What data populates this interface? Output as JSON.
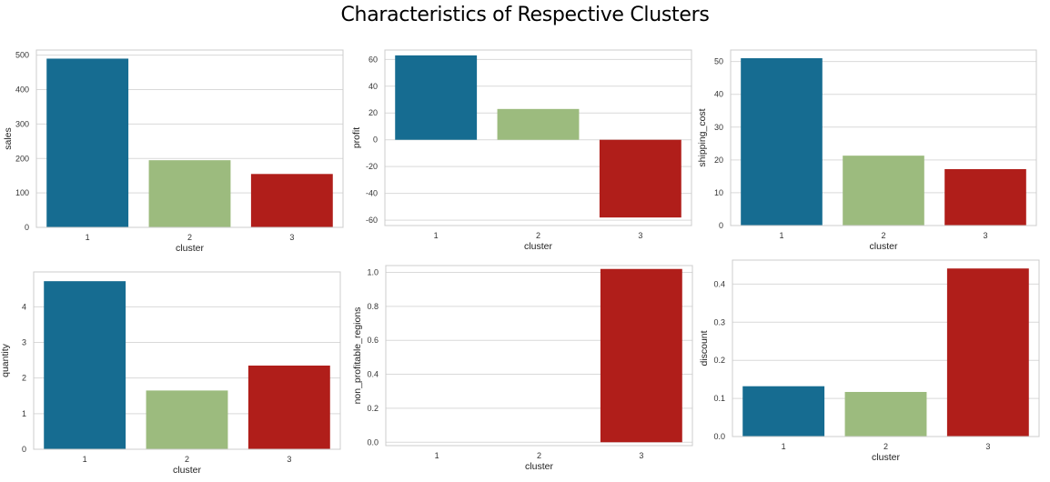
{
  "title": "Characteristics of Respective Clusters",
  "chart_data": [
    {
      "type": "bar",
      "categories": [
        "1",
        "2",
        "3"
      ],
      "values": [
        490,
        195,
        155
      ],
      "xlabel": "cluster",
      "ylabel": "sales",
      "ylim": [
        0,
        515
      ],
      "yticks": [
        0,
        100,
        200,
        300,
        400,
        500
      ],
      "colors": [
        "#166c91",
        "#9cbb7e",
        "#b01e1a"
      ],
      "grid": true
    },
    {
      "type": "bar",
      "categories": [
        "1",
        "2",
        "3"
      ],
      "values": [
        63,
        23,
        -58
      ],
      "xlabel": "cluster",
      "ylabel": "profit",
      "ylim": [
        -64,
        67
      ],
      "yticks": [
        -60,
        -40,
        -20,
        0,
        20,
        40,
        60
      ],
      "colors": [
        "#166c91",
        "#9cbb7e",
        "#b01e1a"
      ],
      "grid": true
    },
    {
      "type": "bar",
      "categories": [
        "1",
        "2",
        "3"
      ],
      "values": [
        51,
        21.3,
        17.2
      ],
      "xlabel": "cluster",
      "ylabel": "shipping_cost",
      "ylim": [
        0,
        53.5
      ],
      "yticks": [
        0,
        10,
        20,
        30,
        40,
        50
      ],
      "colors": [
        "#166c91",
        "#9cbb7e",
        "#b01e1a"
      ],
      "grid": true
    },
    {
      "type": "bar",
      "categories": [
        "1",
        "2",
        "3"
      ],
      "values": [
        4.72,
        1.65,
        2.35
      ],
      "xlabel": "cluster",
      "ylabel": "quantity",
      "ylim": [
        0,
        4.98
      ],
      "yticks": [
        0,
        1,
        2,
        3,
        4
      ],
      "colors": [
        "#166c91",
        "#9cbb7e",
        "#b01e1a"
      ],
      "grid": true
    },
    {
      "type": "bar",
      "categories": [
        "1",
        "2",
        "3"
      ],
      "values": [
        0,
        0,
        1.02
      ],
      "xlabel": "cluster",
      "ylabel": "non_profitable_regions",
      "ylim": [
        -0.02,
        1.04
      ],
      "yticks": [
        0.0,
        0.2,
        0.4,
        0.6,
        0.8,
        1.0
      ],
      "colors": [
        "#166c91",
        "#9cbb7e",
        "#b01e1a"
      ],
      "grid": true
    },
    {
      "type": "bar",
      "categories": [
        "1",
        "2",
        "3"
      ],
      "values": [
        0.132,
        0.117,
        0.441
      ],
      "xlabel": "cluster",
      "ylabel": "discount",
      "ylim": [
        0,
        0.463
      ],
      "yticks": [
        0.0,
        0.1,
        0.2,
        0.3,
        0.4
      ],
      "colors": [
        "#166c91",
        "#9cbb7e",
        "#b01e1a"
      ],
      "grid": true
    }
  ]
}
